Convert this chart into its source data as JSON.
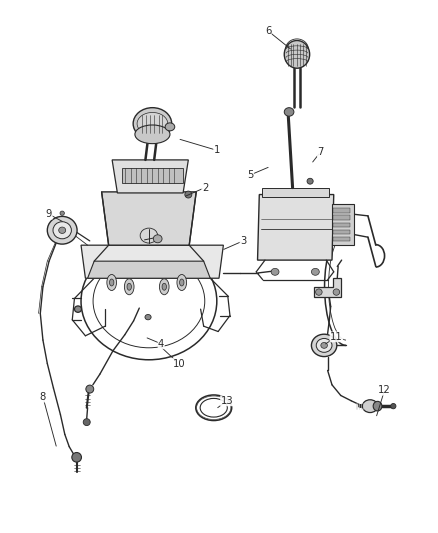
{
  "bg_color": "#ffffff",
  "line_color": "#2a2a2a",
  "label_color": "#2a2a2a",
  "figsize": [
    4.38,
    5.33
  ],
  "dpi": 100,
  "leaders": {
    "1": {
      "label": [
        0.495,
        0.718
      ],
      "part": [
        0.405,
        0.74
      ]
    },
    "2": {
      "label": [
        0.468,
        0.648
      ],
      "part": [
        0.418,
        0.63
      ]
    },
    "3": {
      "label": [
        0.555,
        0.548
      ],
      "part": [
        0.505,
        0.53
      ]
    },
    "4": {
      "label": [
        0.368,
        0.355
      ],
      "part": [
        0.33,
        0.368
      ]
    },
    "5": {
      "label": [
        0.572,
        0.672
      ],
      "part": [
        0.618,
        0.688
      ]
    },
    "6": {
      "label": [
        0.612,
        0.942
      ],
      "part": [
        0.668,
        0.905
      ]
    },
    "7": {
      "label": [
        0.732,
        0.715
      ],
      "part": [
        0.71,
        0.692
      ]
    },
    "8": {
      "label": [
        0.098,
        0.255
      ],
      "part": [
        0.13,
        0.158
      ]
    },
    "9": {
      "label": [
        0.112,
        0.598
      ],
      "part": [
        0.148,
        0.582
      ]
    },
    "10": {
      "label": [
        0.408,
        0.318
      ],
      "part": [
        0.36,
        0.355
      ]
    },
    "11": {
      "label": [
        0.768,
        0.368
      ],
      "part": [
        0.738,
        0.352
      ]
    },
    "12": {
      "label": [
        0.878,
        0.268
      ],
      "part": [
        0.858,
        0.215
      ]
    },
    "13": {
      "label": [
        0.518,
        0.248
      ],
      "part": [
        0.492,
        0.232
      ]
    }
  }
}
